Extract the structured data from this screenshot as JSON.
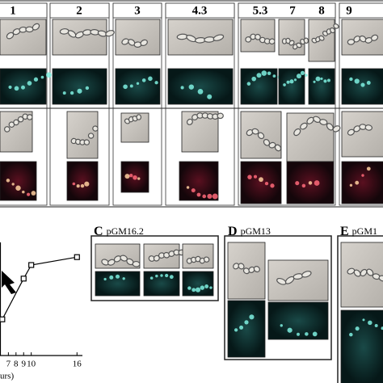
{
  "panel_a": {
    "columns": [
      "1",
      "2",
      "3",
      "4.3",
      "5.3",
      "7",
      "8",
      "9"
    ]
  },
  "panels": [
    {
      "letter": "C",
      "name": "pGM16.2"
    },
    {
      "letter": "D",
      "name": "pGM13"
    },
    {
      "letter": "E",
      "name": "pGM1"
    }
  ],
  "chart_data": {
    "type": "line",
    "x_label": "urs)",
    "x": [
      6.2,
      9,
      10,
      16
    ],
    "series": [
      {
        "color": "#000000",
        "values": [
          32,
          68,
          80,
          87
        ]
      }
    ],
    "xlim": [
      5.9,
      16.5
    ],
    "xticks": [
      7,
      8,
      9,
      10,
      16
    ],
    "ylim": [
      0,
      100
    ]
  }
}
